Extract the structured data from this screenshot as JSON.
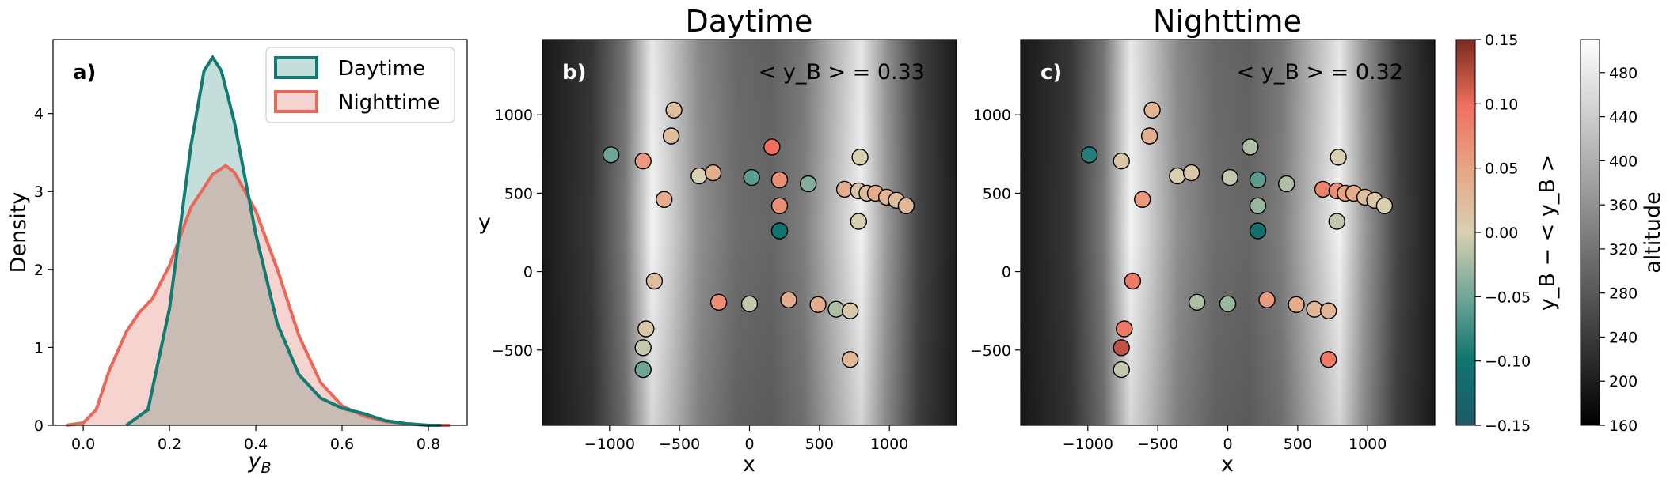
{
  "colors": {
    "day_line": "#137a72",
    "day_fill": "#c4dedb",
    "night_line": "#e8685a",
    "night_fill": "#f6d3cf",
    "overlap_fill": "#c8bcb5"
  },
  "chart_data": [
    {
      "type": "area",
      "panel_label": "a)",
      "xlabel": "y_B",
      "ylabel": "Density",
      "xlim": [
        -0.07,
        0.89
      ],
      "ylim": [
        0,
        4.95
      ],
      "xticks": [
        "0.0",
        "0.2",
        "0.4",
        "0.6",
        "0.8"
      ],
      "xtick_values": [
        0,
        0.2,
        0.4,
        0.6,
        0.8
      ],
      "yticks": [
        "0",
        "1",
        "2",
        "3",
        "4"
      ],
      "ytick_values": [
        0,
        1,
        2,
        3,
        4
      ],
      "legend": [
        "Daytime",
        "Nighttime"
      ],
      "series": [
        {
          "name": "Daytime",
          "x": [
            0.1,
            0.15,
            0.2,
            0.25,
            0.28,
            0.3,
            0.32,
            0.35,
            0.4,
            0.45,
            0.5,
            0.55,
            0.6,
            0.65,
            0.7,
            0.75,
            0.8,
            0.83
          ],
          "y": [
            0.0,
            0.2,
            1.5,
            3.6,
            4.55,
            4.72,
            4.55,
            3.9,
            2.45,
            1.3,
            0.65,
            0.35,
            0.22,
            0.15,
            0.06,
            0.02,
            0.0,
            0.0
          ]
        },
        {
          "name": "Nighttime",
          "x": [
            -0.04,
            0.0,
            0.03,
            0.06,
            0.1,
            0.13,
            0.16,
            0.2,
            0.25,
            0.3,
            0.33,
            0.35,
            0.4,
            0.45,
            0.5,
            0.55,
            0.6,
            0.65,
            0.7,
            0.75,
            0.8,
            0.85
          ],
          "y": [
            0.0,
            0.03,
            0.2,
            0.7,
            1.2,
            1.45,
            1.62,
            2.05,
            2.8,
            3.22,
            3.33,
            3.25,
            2.75,
            2.0,
            1.15,
            0.55,
            0.25,
            0.12,
            0.05,
            0.02,
            0.0,
            0.0
          ]
        }
      ]
    },
    {
      "type": "scatter",
      "panel_label": "b)",
      "title": "Daytime",
      "annotation": "< y_B > = 0.33",
      "xlabel": "x",
      "ylabel": "y",
      "xlim": [
        -1480,
        1480
      ],
      "ylim": [
        -980,
        1480
      ],
      "xticks": [
        "−1000",
        "−500",
        "0",
        "500",
        "1000"
      ],
      "xtick_values": [
        -1000,
        -500,
        0,
        500,
        1000
      ],
      "yticks": [
        "−500",
        "0",
        "500",
        "1000"
      ],
      "ytick_values": [
        -500,
        0,
        500,
        1000
      ],
      "points": [
        {
          "x": -990,
          "y": 745,
          "v": -0.05
        },
        {
          "x": -760,
          "y": 705,
          "v": 0.06
        },
        {
          "x": -540,
          "y": 1030,
          "v": 0.02
        },
        {
          "x": -560,
          "y": 865,
          "v": 0.02
        },
        {
          "x": -610,
          "y": 460,
          "v": 0.04
        },
        {
          "x": -360,
          "y": 610,
          "v": 0.0
        },
        {
          "x": -260,
          "y": 630,
          "v": 0.04
        },
        {
          "x": 15,
          "y": 600,
          "v": -0.06
        },
        {
          "x": 160,
          "y": 795,
          "v": 0.1
        },
        {
          "x": 215,
          "y": 585,
          "v": 0.07
        },
        {
          "x": 215,
          "y": 420,
          "v": 0.07
        },
        {
          "x": 215,
          "y": 260,
          "v": -0.1
        },
        {
          "x": 420,
          "y": 560,
          "v": -0.04
        },
        {
          "x": 680,
          "y": 525,
          "v": 0.04
        },
        {
          "x": 780,
          "y": 515,
          "v": 0.01
        },
        {
          "x": 840,
          "y": 500,
          "v": 0.02
        },
        {
          "x": 900,
          "y": 500,
          "v": 0.04
        },
        {
          "x": 980,
          "y": 475,
          "v": 0.03
        },
        {
          "x": 1050,
          "y": 455,
          "v": 0.02
        },
        {
          "x": 1120,
          "y": 420,
          "v": 0.03
        },
        {
          "x": 780,
          "y": 320,
          "v": 0.0
        },
        {
          "x": 790,
          "y": 730,
          "v": 0.0
        },
        {
          "x": -680,
          "y": -60,
          "v": 0.02
        },
        {
          "x": -740,
          "y": -365,
          "v": 0.01
        },
        {
          "x": -760,
          "y": -485,
          "v": -0.01
        },
        {
          "x": -760,
          "y": -625,
          "v": -0.05
        },
        {
          "x": -220,
          "y": -195,
          "v": 0.07
        },
        {
          "x": 0,
          "y": -205,
          "v": -0.01
        },
        {
          "x": 280,
          "y": -180,
          "v": 0.04
        },
        {
          "x": 490,
          "y": -210,
          "v": 0.04
        },
        {
          "x": 620,
          "y": -240,
          "v": -0.02
        },
        {
          "x": 720,
          "y": -250,
          "v": 0.01
        },
        {
          "x": 720,
          "y": -560,
          "v": 0.03
        }
      ]
    },
    {
      "type": "scatter",
      "panel_label": "c)",
      "title": "Nighttime",
      "annotation": "< y_B > = 0.32",
      "xlabel": "x",
      "ylabel": "",
      "xlim": [
        -1480,
        1480
      ],
      "ylim": [
        -980,
        1480
      ],
      "xticks": [
        "−1000",
        "−500",
        "0",
        "500",
        "1000"
      ],
      "xtick_values": [
        -1000,
        -500,
        0,
        500,
        1000
      ],
      "yticks": [
        "−500",
        "0",
        "500",
        "1000"
      ],
      "ytick_values": [
        -500,
        0,
        500,
        1000
      ],
      "points": [
        {
          "x": -990,
          "y": 745,
          "v": -0.09
        },
        {
          "x": -760,
          "y": 705,
          "v": 0.01
        },
        {
          "x": -540,
          "y": 1030,
          "v": 0.03
        },
        {
          "x": -560,
          "y": 865,
          "v": 0.04
        },
        {
          "x": -610,
          "y": 460,
          "v": 0.06
        },
        {
          "x": -360,
          "y": 610,
          "v": 0.0
        },
        {
          "x": -260,
          "y": 630,
          "v": 0.01
        },
        {
          "x": 15,
          "y": 600,
          "v": -0.01
        },
        {
          "x": 160,
          "y": 795,
          "v": -0.02
        },
        {
          "x": 215,
          "y": 585,
          "v": -0.06
        },
        {
          "x": 215,
          "y": 420,
          "v": -0.03
        },
        {
          "x": 215,
          "y": 260,
          "v": -0.11
        },
        {
          "x": 420,
          "y": 560,
          "v": -0.02
        },
        {
          "x": 680,
          "y": 525,
          "v": 0.08
        },
        {
          "x": 780,
          "y": 515,
          "v": 0.07
        },
        {
          "x": 840,
          "y": 500,
          "v": 0.05
        },
        {
          "x": 900,
          "y": 500,
          "v": 0.04
        },
        {
          "x": 980,
          "y": 475,
          "v": 0.02
        },
        {
          "x": 1050,
          "y": 455,
          "v": 0.01
        },
        {
          "x": 1120,
          "y": 420,
          "v": 0.0
        },
        {
          "x": 780,
          "y": 320,
          "v": -0.01
        },
        {
          "x": 790,
          "y": 730,
          "v": 0.0
        },
        {
          "x": -680,
          "y": -60,
          "v": 0.09
        },
        {
          "x": -740,
          "y": -365,
          "v": 0.09
        },
        {
          "x": -760,
          "y": -485,
          "v": 0.12
        },
        {
          "x": -760,
          "y": -625,
          "v": -0.01
        },
        {
          "x": -220,
          "y": -195,
          "v": -0.02
        },
        {
          "x": 0,
          "y": -205,
          "v": -0.03
        },
        {
          "x": 280,
          "y": -180,
          "v": 0.06
        },
        {
          "x": 490,
          "y": -210,
          "v": 0.04
        },
        {
          "x": 620,
          "y": -240,
          "v": 0.03
        },
        {
          "x": 720,
          "y": -250,
          "v": 0.03
        },
        {
          "x": 720,
          "y": -560,
          "v": 0.09
        }
      ]
    }
  ],
  "colorbar_diff": {
    "label": "y_B − < y_B >",
    "range": [
      -0.15,
      0.15
    ],
    "ticks": [
      "−0.15",
      "−0.10",
      "−0.05",
      "0.00",
      "0.05",
      "0.10",
      "0.15"
    ],
    "tick_values": [
      -0.15,
      -0.1,
      -0.05,
      0,
      0.05,
      0.1,
      0.15
    ],
    "stops": [
      "#1e5a66",
      "#10756f",
      "#6fa597",
      "#d8d0b0",
      "#e7a485",
      "#ef6f5e",
      "#7a2a20"
    ]
  },
  "colorbar_altitude": {
    "label": "altitude",
    "range": [
      160,
      510
    ],
    "ticks": [
      "160",
      "200",
      "240",
      "280",
      "320",
      "360",
      "400",
      "440",
      "480"
    ],
    "tick_values": [
      160,
      200,
      240,
      280,
      320,
      360,
      400,
      440,
      480
    ]
  }
}
